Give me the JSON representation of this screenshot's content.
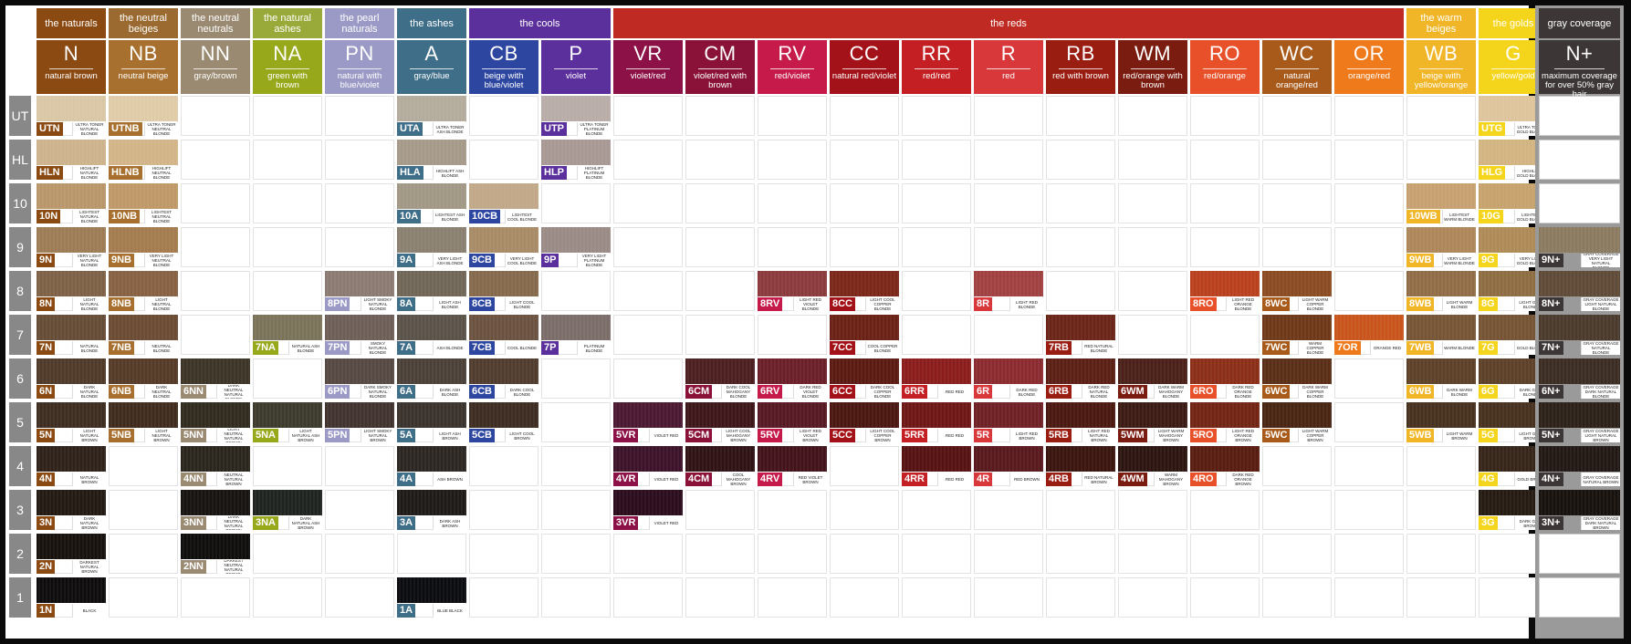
{
  "families": [
    {
      "label": "the naturals",
      "color": "#8a4a12"
    },
    {
      "label": "the neutral beiges",
      "color": "#9a6a30"
    },
    {
      "label": "the neutral neutrals",
      "color": "#9a8a72"
    },
    {
      "label": "the natural ashes",
      "color": "#9aaa3a"
    },
    {
      "label": "the pearl naturals",
      "color": "#9b9ac6"
    },
    {
      "label": "the ashes",
      "color": "#3f6e88"
    },
    {
      "label": "the cools",
      "color": "#5b2f9c"
    },
    {
      "label": "the reds",
      "color": "#bf2a22"
    },
    {
      "label": "the warm beiges",
      "color": "#f0b627"
    },
    {
      "label": "the golds",
      "color": "#f5d51c"
    }
  ],
  "columns": [
    {
      "code": "N",
      "desc": "natural brown",
      "color": "#8a4a12"
    },
    {
      "code": "NB",
      "desc": "neutral beige",
      "color": "#a8702f"
    },
    {
      "code": "NN",
      "desc": "gray/brown",
      "color": "#9a8a72"
    },
    {
      "code": "NA",
      "desc": "green with brown",
      "color": "#98a81b"
    },
    {
      "code": "PN",
      "desc": "natural with blue/violet",
      "color": "#9b9ac6"
    },
    {
      "code": "A",
      "desc": "gray/blue",
      "color": "#3f6e88"
    },
    {
      "code": "CB",
      "desc": "beige with blue/violet",
      "color": "#2d46a0"
    },
    {
      "code": "P",
      "desc": "violet",
      "color": "#5b2f9c"
    },
    {
      "code": "VR",
      "desc": "violet/red",
      "color": "#8c1146"
    },
    {
      "code": "CM",
      "desc": "violet/red with brown",
      "color": "#8a1238"
    },
    {
      "code": "RV",
      "desc": "red/violet",
      "color": "#c51a4a"
    },
    {
      "code": "CC",
      "desc": "natural red/violet",
      "color": "#a31218"
    },
    {
      "code": "RR",
      "desc": "red/red",
      "color": "#c41f22"
    },
    {
      "code": "R",
      "desc": "red",
      "color": "#d8383a"
    },
    {
      "code": "RB",
      "desc": "red with brown",
      "color": "#9a1d12"
    },
    {
      "code": "WM",
      "desc": "red/orange with brown",
      "color": "#7a1c10"
    },
    {
      "code": "RO",
      "desc": "red/orange",
      "color": "#e8502a"
    },
    {
      "code": "WC",
      "desc": "natural orange/red",
      "color": "#a85a1a"
    },
    {
      "code": "OR",
      "desc": "orange/red",
      "color": "#ef7a1c"
    },
    {
      "code": "WB",
      "desc": "beige with yellow/orange",
      "color": "#f0b627"
    },
    {
      "code": "G",
      "desc": "yellow/gold",
      "color": "#f5d51c"
    }
  ],
  "levels": [
    "UT",
    "HL",
    "10",
    "9",
    "8",
    "7",
    "6",
    "5",
    "4",
    "3",
    "2",
    "1"
  ],
  "side": {
    "head": "gray coverage",
    "code": "N+",
    "desc": "maximum coverage for over 50% gray hair",
    "swatches": [
      {
        "level": "9",
        "label": "9N+",
        "desc": "GRAY COVERAGE VERY LIGHT NATURAL BLONDE",
        "tex": "#8a7a60"
      },
      {
        "level": "8",
        "label": "8N+",
        "desc": "GRAY COVERAGE LIGHT NATURAL BLONDE",
        "tex": "#5e4a36"
      },
      {
        "level": "7",
        "label": "7N+",
        "desc": "GRAY COVERAGE NATURAL BLONDE",
        "tex": "#4a3a2c"
      },
      {
        "level": "6",
        "label": "6N+",
        "desc": "GRAY COVERAGE DARK NATURAL BLONDE",
        "tex": "#3a2c22"
      },
      {
        "level": "5",
        "label": "5N+",
        "desc": "GRAY COVERAGE LIGHT NATURAL BROWN",
        "tex": "#2c2119"
      },
      {
        "level": "4",
        "label": "4N+",
        "desc": "GRAY COVERAGE NATURAL BROWN",
        "tex": "#211814"
      },
      {
        "level": "3",
        "label": "3N+",
        "desc": "GRAY COVERAGE DARK NATURAL BROWN",
        "tex": "#17110e"
      }
    ]
  },
  "swatches": [
    {
      "col": 0,
      "level": "UT",
      "label": "UTN",
      "desc": "ULTRA TONER NATURAL BLONDE",
      "tex": "#d9c7a6"
    },
    {
      "col": 0,
      "level": "HL",
      "label": "HLN",
      "desc": "HIGHLIFT NATURAL BLONDE",
      "tex": "#ccb38c"
    },
    {
      "col": 0,
      "level": "10",
      "label": "10N",
      "desc": "LIGHTEST NATURAL BLONDE",
      "tex": "#b8966a"
    },
    {
      "col": 0,
      "level": "9",
      "label": "9N",
      "desc": "VERY LIGHT NATURAL BLONDE",
      "tex": "#9c7b55"
    },
    {
      "col": 0,
      "level": "8",
      "label": "8N",
      "desc": "LIGHT NATURAL BLONDE",
      "tex": "#7d6146"
    },
    {
      "col": 0,
      "level": "7",
      "label": "7N",
      "desc": "NATURAL BLONDE",
      "tex": "#654c37"
    },
    {
      "col": 0,
      "level": "6",
      "label": "6N",
      "desc": "DARK NATURAL BLONDE",
      "tex": "#4f3a2a"
    },
    {
      "col": 0,
      "level": "5",
      "label": "5N",
      "desc": "LIGHT NATURAL BROWN",
      "tex": "#3d2c20"
    },
    {
      "col": 0,
      "level": "4",
      "label": "4N",
      "desc": "NATURAL BROWN",
      "tex": "#2e2119"
    },
    {
      "col": 0,
      "level": "3",
      "label": "3N",
      "desc": "DARK NATURAL BROWN",
      "tex": "#221913"
    },
    {
      "col": 0,
      "level": "2",
      "label": "2N",
      "desc": "DARKEST NATURAL BROWN",
      "tex": "#17110e"
    },
    {
      "col": 0,
      "level": "1",
      "label": "1N",
      "desc": "BLACK",
      "tex": "#0d0b0b"
    },
    {
      "col": 1,
      "level": "UT",
      "label": "UTNB",
      "desc": "ULTRA TONER NEUTRAL BLONDE",
      "tex": "#e0cba8"
    },
    {
      "col": 1,
      "level": "HL",
      "label": "HLNB",
      "desc": "HIGHLIFT NEUTRAL BLONDE",
      "tex": "#d2b488"
    },
    {
      "col": 1,
      "level": "10",
      "label": "10NB",
      "desc": "LIGHTEST NEUTRAL BLONDE",
      "tex": "#bf9868"
    },
    {
      "col": 1,
      "level": "9",
      "label": "9NB",
      "desc": "VERY LIGHT NEUTRAL BLONDE",
      "tex": "#a47b4e"
    },
    {
      "col": 1,
      "level": "8",
      "label": "8NB",
      "desc": "LIGHT NEUTRAL BLONDE",
      "tex": "#866142"
    },
    {
      "col": 1,
      "level": "7",
      "label": "7NB",
      "desc": "NEUTRAL BLONDE",
      "tex": "#6b4b33"
    },
    {
      "col": 1,
      "level": "6",
      "label": "6NB",
      "desc": "DARK NEUTRAL BLONDE",
      "tex": "#543a27"
    },
    {
      "col": 1,
      "level": "5",
      "label": "5NB",
      "desc": "LIGHT NEUTRAL BROWN",
      "tex": "#3f2b1d"
    },
    {
      "col": 2,
      "level": "6",
      "label": "6NN",
      "desc": "DARK NEUTRAL NATURAL BLONDE",
      "tex": "#3c3426"
    },
    {
      "col": 2,
      "level": "5",
      "label": "5NN",
      "desc": "LIGHT NEUTRAL NATURAL BROWN",
      "tex": "#302a1f"
    },
    {
      "col": 2,
      "level": "4",
      "label": "4NN",
      "desc": "NEUTRAL NATURAL BROWN",
      "tex": "#2a251c"
    },
    {
      "col": 2,
      "level": "3",
      "label": "3NN",
      "desc": "DARK NEUTRAL NATURAL BROWN",
      "tex": "#161311"
    },
    {
      "col": 2,
      "level": "2",
      "label": "2NN",
      "desc": "DARKEST NEUTRAL NATURAL BROWN",
      "tex": "#0f0d0c"
    },
    {
      "col": 3,
      "level": "7",
      "label": "7NA",
      "desc": "NATURAL ASH BLONDE",
      "tex": "#7a735a"
    },
    {
      "col": 3,
      "level": "5",
      "label": "5NA",
      "desc": "LIGHT NATURAL ASH BROWN",
      "tex": "#3c3a2c"
    },
    {
      "col": 3,
      "level": "3",
      "label": "3NA",
      "desc": "DARK NATURAL ASH BROWN",
      "tex": "#1f2320"
    },
    {
      "col": 4,
      "level": "8",
      "label": "8PN",
      "desc": "LIGHT SMOKY NATURAL BLONDE",
      "tex": "#8a7a72"
    },
    {
      "col": 4,
      "level": "7",
      "label": "7PN",
      "desc": "SMOKY NATURAL BLONDE",
      "tex": "#6e5e58"
    },
    {
      "col": 4,
      "level": "6",
      "label": "6PN",
      "desc": "DARK SMOKY NATURAL BLONDE",
      "tex": "#564842"
    },
    {
      "col": 4,
      "level": "5",
      "label": "5PN",
      "desc": "LIGHT SMOKY NATURAL BROWN",
      "tex": "#40332f"
    },
    {
      "col": 5,
      "level": "UT",
      "label": "UTA",
      "desc": "ULTRA TONER ASH BLONDE",
      "tex": "#b3ab9c"
    },
    {
      "col": 5,
      "level": "HL",
      "label": "HLA",
      "desc": "HIGHLIFT ASH BLONDE",
      "tex": "#a59a89"
    },
    {
      "col": 5,
      "level": "10",
      "label": "10A",
      "desc": "LIGHTEST ASH BLONDE",
      "tex": "#a09785"
    },
    {
      "col": 5,
      "level": "9",
      "label": "9A",
      "desc": "VERY LIGHT ASH BLONDE",
      "tex": "#8a8070"
    },
    {
      "col": 5,
      "level": "8",
      "label": "8A",
      "desc": "LIGHT ASH BLONDE",
      "tex": "#706658"
    },
    {
      "col": 5,
      "level": "7",
      "label": "7A",
      "desc": "ASH BLONDE",
      "tex": "#5a5248"
    },
    {
      "col": 5,
      "level": "6",
      "label": "6A",
      "desc": "DARK ASH BLONDE",
      "tex": "#4a4038"
    },
    {
      "col": 5,
      "level": "5",
      "label": "5A",
      "desc": "LIGHT ASH BROWN",
      "tex": "#3a322c"
    },
    {
      "col": 5,
      "level": "4",
      "label": "4A",
      "desc": "ASH BROWN",
      "tex": "#2c2622"
    },
    {
      "col": 5,
      "level": "3",
      "label": "3A",
      "desc": "DARK ASH BROWN",
      "tex": "#1e1a18"
    },
    {
      "col": 5,
      "level": "1",
      "label": "1A",
      "desc": "BLUE BLACK",
      "tex": "#0b0c10"
    },
    {
      "col": 6,
      "level": "10",
      "label": "10CB",
      "desc": "LIGHTEST COOL BLONDE",
      "tex": "#c0a888"
    },
    {
      "col": 6,
      "level": "9",
      "label": "9CB",
      "desc": "VERY LIGHT COOL BLONDE",
      "tex": "#a78a66"
    },
    {
      "col": 6,
      "level": "8",
      "label": "8CB",
      "desc": "LIGHT COOL BLONDE",
      "tex": "#85694c"
    },
    {
      "col": 6,
      "level": "7",
      "label": "7CB",
      "desc": "COOL BLONDE",
      "tex": "#6b5240"
    },
    {
      "col": 6,
      "level": "6",
      "label": "6CB",
      "desc": "DARK COOL BLONDE",
      "tex": "#503c2e"
    },
    {
      "col": 6,
      "level": "5",
      "label": "5CB",
      "desc": "LIGHT COOL BROWN",
      "tex": "#3c2c22"
    },
    {
      "col": 7,
      "level": "UT",
      "label": "UTP",
      "desc": "ULTRA TONER PLATINUM BLONDE",
      "tex": "#b8aca8"
    },
    {
      "col": 7,
      "level": "HL",
      "label": "HLP",
      "desc": "HIGHLIFT PLATINUM BLONDE",
      "tex": "#a89894"
    },
    {
      "col": 7,
      "level": "9",
      "label": "9P",
      "desc": "VERY LIGHT PLATINUM BLONDE",
      "tex": "#9a8a86"
    },
    {
      "col": 7,
      "level": "7",
      "label": "7P",
      "desc": "PLATINUM BLONDE",
      "tex": "#7a6c68"
    },
    {
      "col": 8,
      "level": "5",
      "label": "5VR",
      "desc": "VIOLET RED",
      "tex": "#4a1830"
    },
    {
      "col": 8,
      "level": "4",
      "label": "4VR",
      "desc": "VIOLET RED",
      "tex": "#3c1228"
    },
    {
      "col": 8,
      "level": "3",
      "label": "3VR",
      "desc": "VIOLET RED",
      "tex": "#2a0c1c"
    },
    {
      "col": 9,
      "level": "6",
      "label": "6CM",
      "desc": "DARK COOL MAHOGANY BLONDE",
      "tex": "#4c1e20"
    },
    {
      "col": 9,
      "level": "5",
      "label": "5CM",
      "desc": "LIGHT COOL MAHOGANY BROWN",
      "tex": "#3c1618"
    },
    {
      "col": 9,
      "level": "4",
      "label": "4CM",
      "desc": "COOL MAHOGANY BROWN",
      "tex": "#2e1214"
    },
    {
      "col": 10,
      "level": "8",
      "label": "8RV",
      "desc": "LIGHT RED VIOLET BLONDE",
      "tex": "#8a3a3c"
    },
    {
      "col": 10,
      "level": "6",
      "label": "6RV",
      "desc": "DARK RED VIOLET BLONDE",
      "tex": "#6a1e28"
    },
    {
      "col": 10,
      "level": "5",
      "label": "5RV",
      "desc": "LIGHT RED VIOLET BROWN",
      "tex": "#561822"
    },
    {
      "col": 10,
      "level": "4",
      "label": "4RV",
      "desc": "RED VIOLET BROWN",
      "tex": "#42121a"
    },
    {
      "col": 11,
      "level": "8",
      "label": "8CC",
      "desc": "LIGHT COOL COPPER BLONDE",
      "tex": "#7a2618"
    },
    {
      "col": 11,
      "level": "7",
      "label": "7CC",
      "desc": "COOL COPPER BLONDE",
      "tex": "#6a2014"
    },
    {
      "col": 11,
      "level": "6",
      "label": "6CC",
      "desc": "DARK COOL COPPER BLONDE",
      "tex": "#5a1a12"
    },
    {
      "col": 11,
      "level": "5",
      "label": "5CC",
      "desc": "LIGHT COOL COPPER BROWN",
      "tex": "#4a1610"
    },
    {
      "col": 12,
      "level": "6",
      "label": "6RR",
      "desc": "RED RED",
      "tex": "#8a1c1c"
    },
    {
      "col": 12,
      "level": "5",
      "label": "5RR",
      "desc": "RED RED",
      "tex": "#6e1616"
    },
    {
      "col": 12,
      "level": "4",
      "label": "4RR",
      "desc": "RED RED",
      "tex": "#561212"
    },
    {
      "col": 13,
      "level": "8",
      "label": "8R",
      "desc": "LIGHT RED BLONDE",
      "tex": "#a04040"
    },
    {
      "col": 13,
      "level": "6",
      "label": "6R",
      "desc": "DARK RED BLONDE",
      "tex": "#8a2a2e"
    },
    {
      "col": 13,
      "level": "5",
      "label": "5R",
      "desc": "LIGHT RED BROWN",
      "tex": "#6e2024"
    },
    {
      "col": 13,
      "level": "4",
      "label": "4R",
      "desc": "RED BROWN",
      "tex": "#58181c"
    },
    {
      "col": 14,
      "level": "7",
      "label": "7RB",
      "desc": "RED NATURAL BLONDE",
      "tex": "#6a2418"
    },
    {
      "col": 14,
      "level": "6",
      "label": "6RB",
      "desc": "DARK RED NATURAL BLONDE",
      "tex": "#5a1e14"
    },
    {
      "col": 14,
      "level": "5",
      "label": "5RB",
      "desc": "LIGHT RED NATURAL BROWN",
      "tex": "#4a1810"
    },
    {
      "col": 14,
      "level": "4",
      "label": "4RB",
      "desc": "RED NATURAL BROWN",
      "tex": "#3a140e"
    },
    {
      "col": 15,
      "level": "6",
      "label": "6WM",
      "desc": "DARK WARM MAHOGANY BLONDE",
      "tex": "#4a2018"
    },
    {
      "col": 15,
      "level": "5",
      "label": "5WM",
      "desc": "LIGHT WARM MAHOGANY BROWN",
      "tex": "#3c1a14"
    },
    {
      "col": 15,
      "level": "4",
      "label": "4WM",
      "desc": "WARM MAHOGANY BROWN",
      "tex": "#2c1410"
    },
    {
      "col": 16,
      "level": "8",
      "label": "8RO",
      "desc": "LIGHT RED ORANGE BLONDE",
      "tex": "#b8401c"
    },
    {
      "col": 16,
      "level": "6",
      "label": "6RO",
      "desc": "DARK RED ORANGE BLONDE",
      "tex": "#8a2e18"
    },
    {
      "col": 16,
      "level": "5",
      "label": "5RO",
      "desc": "LIGHT RED ORANGE BROWN",
      "tex": "#722414"
    },
    {
      "col": 16,
      "level": "4",
      "label": "4RO",
      "desc": "DARK RED ORANGE BROWN",
      "tex": "#581c10"
    },
    {
      "col": 17,
      "level": "8",
      "label": "8WC",
      "desc": "LIGHT WARM COPPER BLONDE",
      "tex": "#8a4a22"
    },
    {
      "col": 17,
      "level": "7",
      "label": "7WC",
      "desc": "WARM COPPER BLONDE",
      "tex": "#6e3818"
    },
    {
      "col": 17,
      "level": "6",
      "label": "6WC",
      "desc": "DARK WARM COPPER BLONDE",
      "tex": "#5a2e16"
    },
    {
      "col": 17,
      "level": "5",
      "label": "5WC",
      "desc": "LIGHT WARM COPPER BROWN",
      "tex": "#482412"
    },
    {
      "col": 18,
      "level": "7",
      "label": "7OR",
      "desc": "ORANGE RED",
      "tex": "#c8541c"
    },
    {
      "col": 19,
      "level": "10",
      "label": "10WB",
      "desc": "LIGHTEST WARM BLONDE",
      "tex": "#c6a070"
    },
    {
      "col": 19,
      "level": "9",
      "label": "9WB",
      "desc": "VERY LIGHT WARM BLONDE",
      "tex": "#ad865a"
    },
    {
      "col": 19,
      "level": "8",
      "label": "8WB",
      "desc": "LIGHT WARM BLONDE",
      "tex": "#906c46"
    },
    {
      "col": 19,
      "level": "7",
      "label": "7WB",
      "desc": "WARM BLONDE",
      "tex": "#765436"
    },
    {
      "col": 19,
      "level": "6",
      "label": "6WB",
      "desc": "DARK WARM BLONDE",
      "tex": "#5c4028"
    },
    {
      "col": 19,
      "level": "5",
      "label": "5WB",
      "desc": "LIGHT WARM BROWN",
      "tex": "#46301e"
    },
    {
      "col": 20,
      "level": "UT",
      "label": "UTG",
      "desc": "ULTRA TONER GOLD BLONDE",
      "tex": "#ddc49c"
    },
    {
      "col": 20,
      "level": "HL",
      "label": "HLG",
      "desc": "HIGHLIFT GOLD BLONDE",
      "tex": "#d2b482"
    },
    {
      "col": 20,
      "level": "10",
      "label": "10G",
      "desc": "LIGHTEST GOLD BLONDE",
      "tex": "#c6a26c"
    },
    {
      "col": 20,
      "level": "9",
      "label": "9G",
      "desc": "VERY LIGHT GOLD BLONDE",
      "tex": "#ae8a56"
    },
    {
      "col": 20,
      "level": "8",
      "label": "8G",
      "desc": "LIGHT GOLD BLONDE",
      "tex": "#8e6c42"
    },
    {
      "col": 20,
      "level": "7",
      "label": "7G",
      "desc": "GOLD BLONDE",
      "tex": "#745434"
    },
    {
      "col": 20,
      "level": "6",
      "label": "6G",
      "desc": "DARK GOLD BLONDE",
      "tex": "#5c4028"
    },
    {
      "col": 20,
      "level": "5",
      "label": "5G",
      "desc": "LIGHT GOLD BROWN",
      "tex": "#46301e"
    },
    {
      "col": 20,
      "level": "4",
      "label": "4G",
      "desc": "GOLD BROWN",
      "tex": "#352418"
    },
    {
      "col": 20,
      "level": "3",
      "label": "3G",
      "desc": "DARK GOLD BROWN",
      "tex": "#241a12"
    }
  ]
}
